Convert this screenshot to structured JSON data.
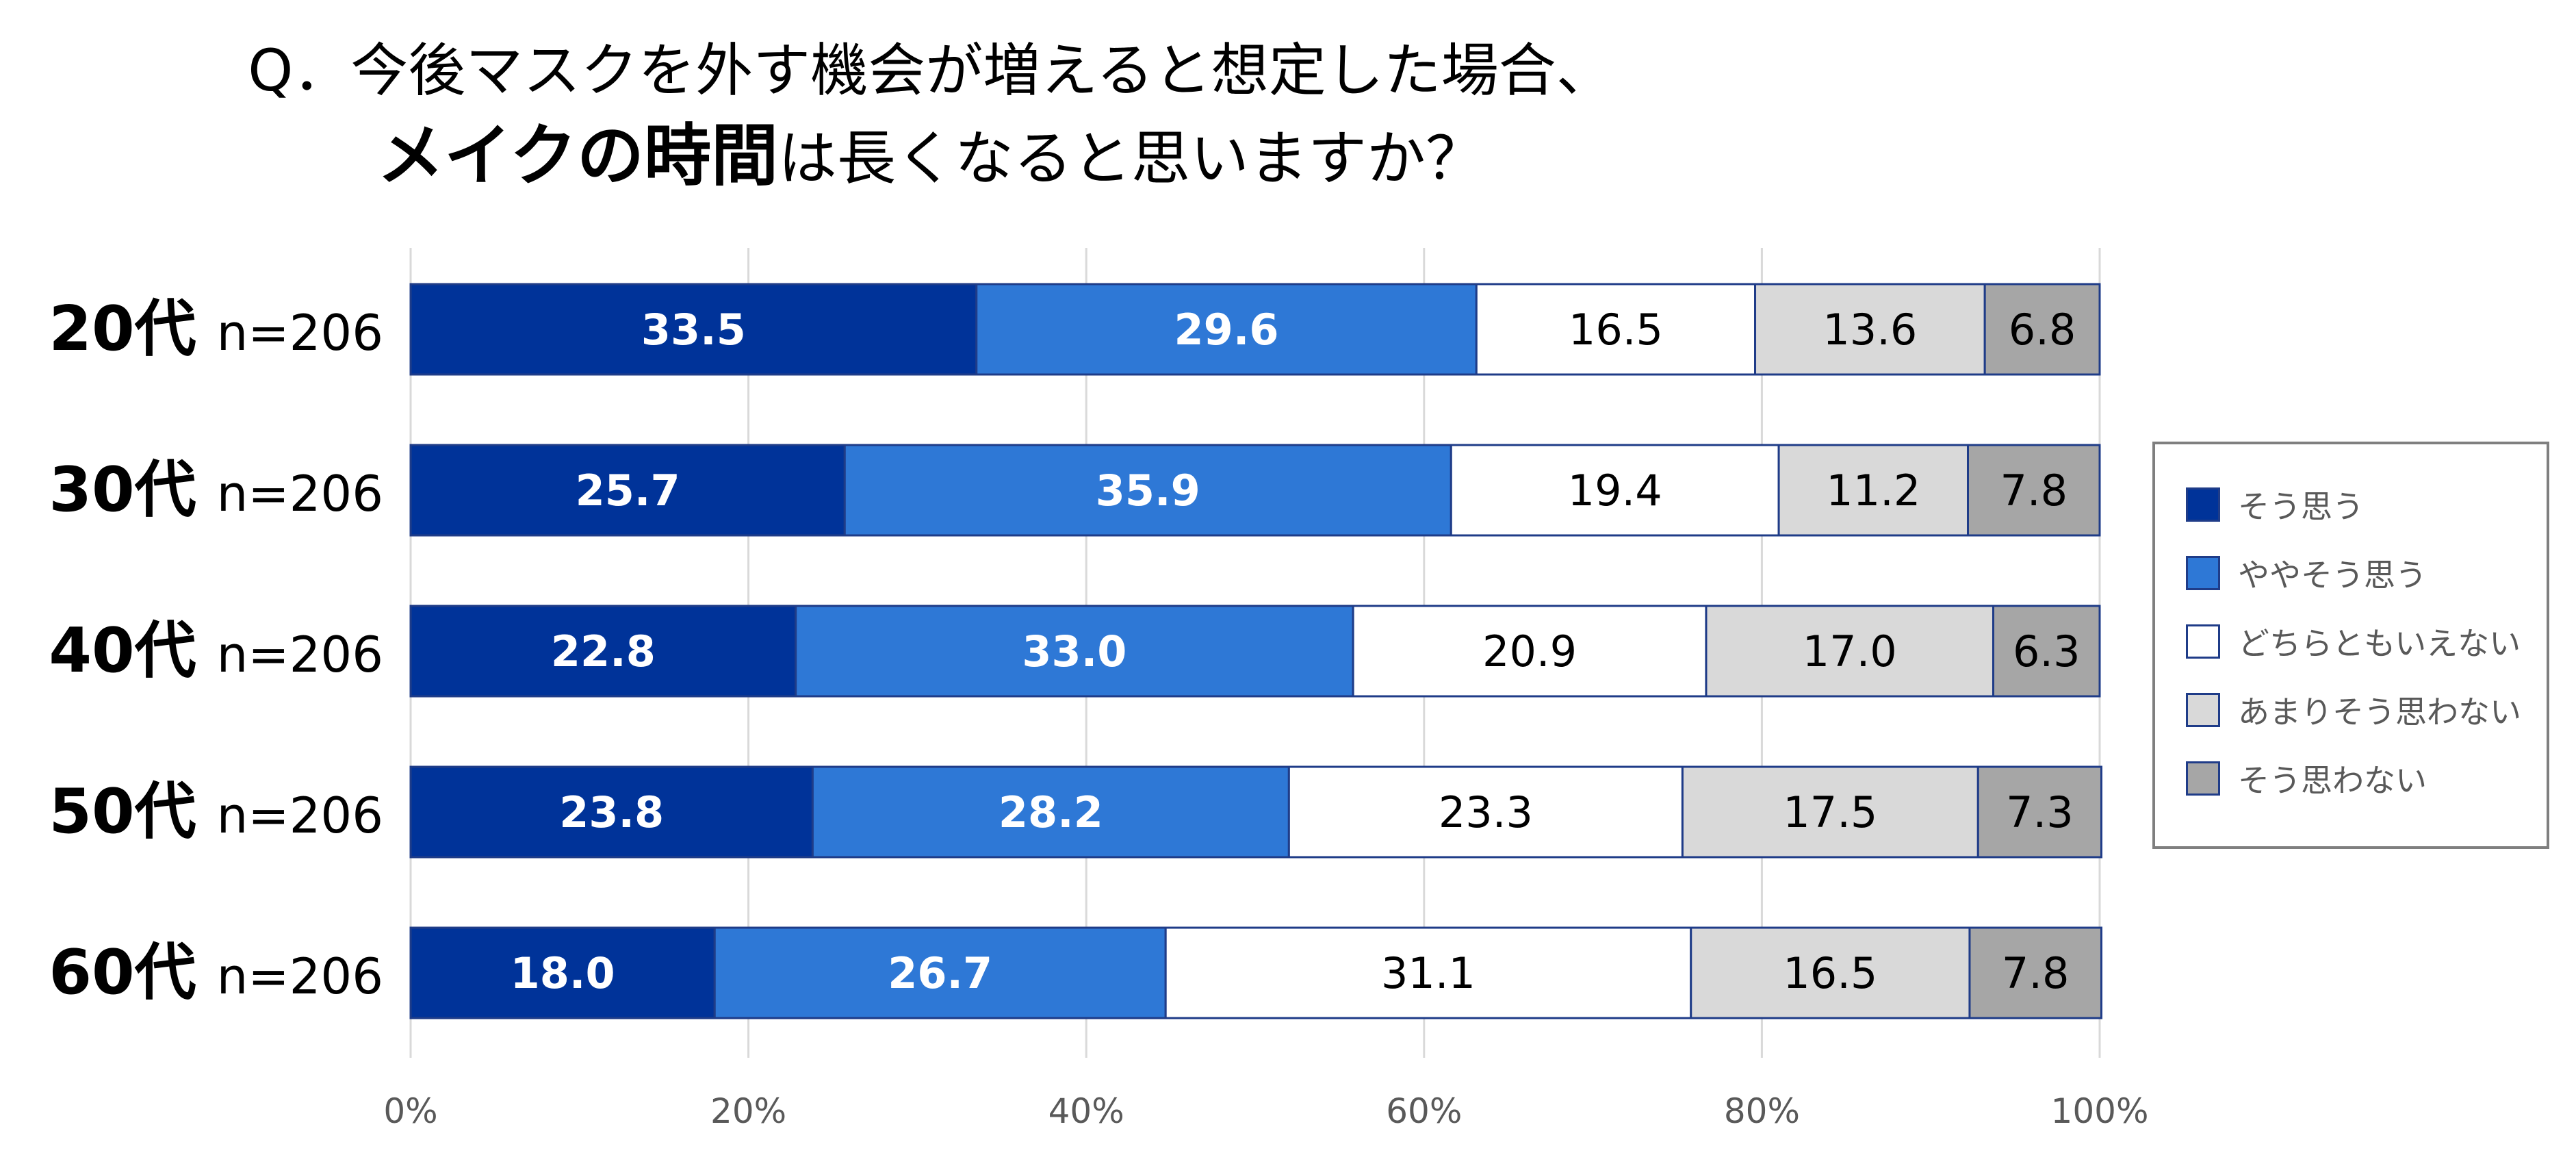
{
  "title": {
    "line1": "Q．今後マスクを外す機会が増えると想定した場合、",
    "line2_bold": "メイクの時間",
    "line2_rest": "は長くなると思いますか？"
  },
  "colors": {
    "series": [
      "#003399",
      "#2e78d6",
      "#ffffff",
      "#d9d9d9",
      "#a6a6a6"
    ],
    "border": "#1f3c88",
    "grid": "#d9d9d9",
    "axis_text": "#595959"
  },
  "chart_data": {
    "type": "bar",
    "orientation": "horizontal",
    "stacked": "percent",
    "categories": [
      {
        "label": "20代",
        "n": "n=206"
      },
      {
        "label": "30代",
        "n": "n=206"
      },
      {
        "label": "40代",
        "n": "n=206"
      },
      {
        "label": "50代",
        "n": "n=206"
      },
      {
        "label": "60代",
        "n": "n=206"
      }
    ],
    "series": [
      {
        "name": "そう思う",
        "values": [
          "33.5",
          "25.7",
          "22.8",
          "23.8",
          "18.0"
        ]
      },
      {
        "name": "ややそう思う",
        "values": [
          "29.6",
          "35.9",
          "33.0",
          "28.2",
          "26.7"
        ]
      },
      {
        "name": "どちらともいえない",
        "values": [
          "16.5",
          "19.4",
          "20.9",
          "23.3",
          "31.1"
        ]
      },
      {
        "name": "あまりそう思わない",
        "values": [
          "13.6",
          "11.2",
          "17.0",
          "17.5",
          "16.5"
        ]
      },
      {
        "name": "そう思わない",
        "values": [
          "6.8",
          "7.8",
          "6.3",
          "7.3",
          "7.8"
        ]
      }
    ],
    "x_ticks": [
      "0%",
      "20%",
      "40%",
      "60%",
      "80%",
      "100%"
    ],
    "xlim": [
      0,
      100
    ],
    "grid": true,
    "legend_position": "right"
  }
}
